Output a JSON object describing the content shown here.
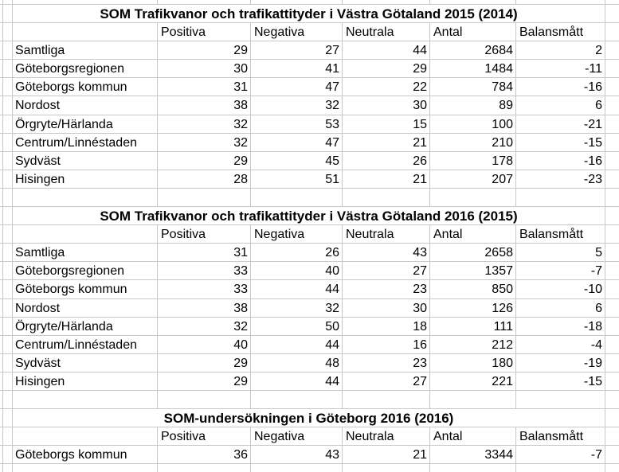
{
  "app": {
    "kind": "spreadsheet-screenshot"
  },
  "colors": {
    "gridline": "#c8c8c8",
    "background": "#ffffff",
    "text": "#000000"
  },
  "tables": [
    {
      "title": "SOM Trafikvanor och trafikattityder i Västra Götaland 2015 (2014)",
      "columns": [
        "Positiva",
        "Negativa",
        "Neutrala",
        "Antal",
        "Balansmått"
      ],
      "rows": [
        {
          "label": "Samtliga",
          "values": [
            29,
            27,
            44,
            2684,
            2
          ]
        },
        {
          "label": "Göteborgsregionen",
          "values": [
            30,
            41,
            29,
            1484,
            -11
          ]
        },
        {
          "label": "Göteborgs kommun",
          "values": [
            31,
            47,
            22,
            784,
            -16
          ]
        },
        {
          "label": "Nordost",
          "values": [
            38,
            32,
            30,
            89,
            6
          ]
        },
        {
          "label": "Örgryte/Härlanda",
          "values": [
            32,
            53,
            15,
            100,
            -21
          ]
        },
        {
          "label": "Centrum/Linnéstaden",
          "values": [
            32,
            47,
            21,
            210,
            -15
          ]
        },
        {
          "label": "Sydväst",
          "values": [
            29,
            45,
            26,
            178,
            -16
          ]
        },
        {
          "label": "Hisingen",
          "values": [
            28,
            51,
            21,
            207,
            -23
          ]
        }
      ]
    },
    {
      "title": "SOM Trafikvanor och trafikattityder i Västra Götaland 2016 (2015)",
      "columns": [
        "Positiva",
        "Negativa",
        "Neutrala",
        "Antal",
        "Balansmått"
      ],
      "rows": [
        {
          "label": "Samtliga",
          "values": [
            31,
            26,
            43,
            2658,
            5
          ]
        },
        {
          "label": "Göteborgsregionen",
          "values": [
            33,
            40,
            27,
            1357,
            -7
          ]
        },
        {
          "label": "Göteborgs kommun",
          "values": [
            33,
            44,
            23,
            850,
            -10
          ]
        },
        {
          "label": "Nordost",
          "values": [
            38,
            32,
            30,
            126,
            6
          ]
        },
        {
          "label": "Örgryte/Härlanda",
          "values": [
            32,
            50,
            18,
            111,
            -18
          ]
        },
        {
          "label": "Centrum/Linnéstaden",
          "values": [
            40,
            44,
            16,
            212,
            -4
          ]
        },
        {
          "label": "Sydväst",
          "values": [
            29,
            48,
            23,
            180,
            -19
          ]
        },
        {
          "label": "Hisingen",
          "values": [
            29,
            44,
            27,
            221,
            -15
          ]
        }
      ]
    },
    {
      "title": "SOM-undersökningen i Göteborg 2016 (2016)",
      "columns": [
        "Positiva",
        "Negativa",
        "Neutrala",
        "Antal",
        "Balansmått"
      ],
      "rows": [
        {
          "label": "Göteborgs kommun",
          "values": [
            36,
            43,
            21,
            3344,
            -7
          ]
        }
      ]
    }
  ]
}
